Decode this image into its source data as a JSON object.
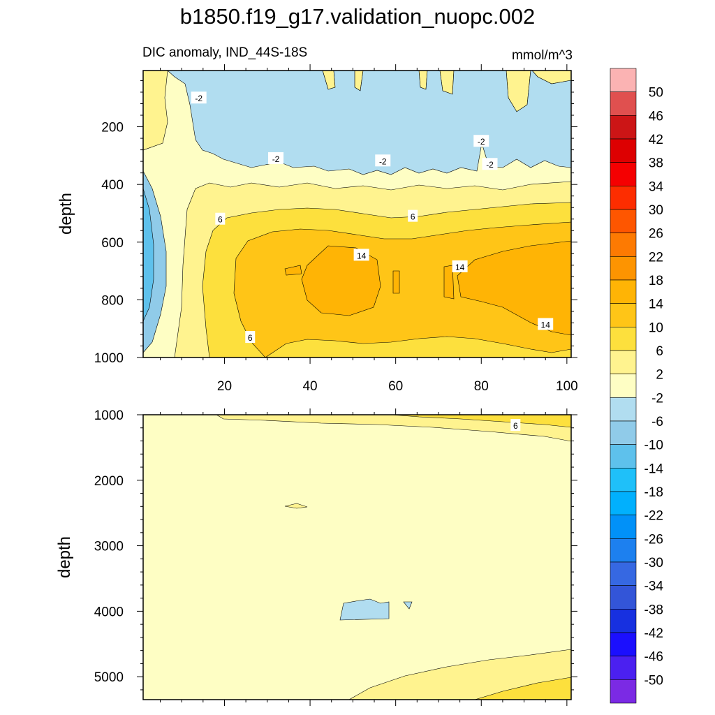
{
  "chart_data": {
    "type": "heatmap",
    "title": "b1850.f19_g17.validation_nuopc.002",
    "subtitle_left": "DIC anomaly, IND_44S-18S",
    "subtitle_right": "mmol/m^3",
    "xlim": [
      1,
      101
    ],
    "xticks": [
      "20",
      "40",
      "60",
      "80",
      "100"
    ],
    "panels": [
      {
        "name": "upper",
        "ylabel": "depth",
        "ylim": [
          1000,
          5
        ],
        "yticks": [
          "200",
          "400",
          "600",
          "800",
          "1000"
        ],
        "contour_labels": [
          {
            "text": "-2",
            "x": 14,
            "y": 100
          },
          {
            "text": "-2",
            "x": 32,
            "y": 310
          },
          {
            "text": "-2",
            "x": 57,
            "y": 318
          },
          {
            "text": "-2",
            "x": 80,
            "y": 250
          },
          {
            "text": "-2",
            "x": 82,
            "y": 330
          },
          {
            "text": "6",
            "x": 19,
            "y": 520
          },
          {
            "text": "6",
            "x": 64,
            "y": 510
          },
          {
            "text": "6",
            "x": 26,
            "y": 930
          },
          {
            "text": "14",
            "x": 52,
            "y": 645
          },
          {
            "text": "14",
            "x": 75,
            "y": 685
          },
          {
            "text": "14",
            "x": 95,
            "y": 885
          }
        ]
      },
      {
        "name": "lower",
        "ylabel": "depth",
        "ylim": [
          5350,
          1000
        ],
        "yticks": [
          "1000",
          "2000",
          "3000",
          "4000",
          "5000"
        ],
        "contour_labels": [
          {
            "text": "6",
            "x": 88,
            "y": 1160
          }
        ]
      }
    ],
    "colorbar": {
      "labels": [
        "50",
        "46",
        "42",
        "38",
        "34",
        "30",
        "26",
        "22",
        "18",
        "14",
        "10",
        "6",
        "2",
        "-2",
        "-6",
        "-10",
        "-14",
        "-18",
        "-22",
        "-26",
        "-30",
        "-34",
        "-38",
        "-42",
        "-46",
        "-50"
      ],
      "colors": [
        "#fbb3b3",
        "#e0504f",
        "#cc1516",
        "#dd0001",
        "#f50001",
        "#fd2d00",
        "#fe5600",
        "#fd7a02",
        "#fd9401",
        "#ffb405",
        "#ffc517",
        "#fde03d",
        "#fff38f",
        "#fefec4",
        "#b1ddf0",
        "#90cbe9",
        "#5ec1ec",
        "#1fc0f9",
        "#01b0fd",
        "#0191f8",
        "#1d80ef",
        "#3668e2",
        "#3355d8",
        "#1730e0",
        "#1b0ffe",
        "#4b20f0",
        "#7b2ae4"
      ]
    },
    "grid": false,
    "legend": "right"
  }
}
